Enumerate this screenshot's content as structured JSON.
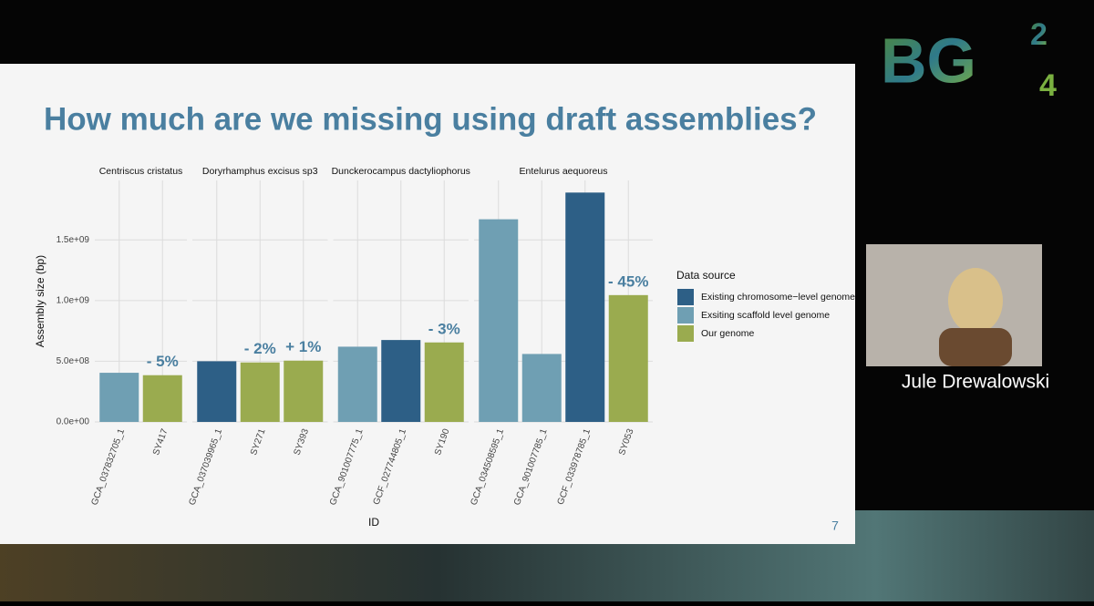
{
  "logo": {
    "text": "BG",
    "superscript": "2",
    "subscript": "4"
  },
  "slide": {
    "title": "How much are we missing using draft assemblies?",
    "page_number": "7"
  },
  "speaker": {
    "name": "Jule Drewalowski"
  },
  "chart_data": {
    "type": "bar",
    "x_label": "ID",
    "y_label": "Assembly size (bp)",
    "ylim": [
      0,
      1990000000
    ],
    "yticks": [
      {
        "value": 0,
        "label": "0.0e+00"
      },
      {
        "value": 500000000,
        "label": "5.0e+08"
      },
      {
        "value": 1000000000,
        "label": "1.0e+09"
      },
      {
        "value": 1500000000,
        "label": "1.5e+09"
      }
    ],
    "grid": true,
    "legend": {
      "title": "Data source",
      "position": "right",
      "entries": [
        {
          "name": "Existing chromosome−level genome",
          "color": "#2d5f86"
        },
        {
          "name": "Exsiting scaffold level genome",
          "color": "#6f9fb3"
        },
        {
          "name": "Our genome",
          "color": "#9aab4f"
        }
      ]
    },
    "facets": [
      {
        "name": "Centriscus cristatus",
        "categories": [
          "GCA_037832705_1",
          "SY417"
        ],
        "values": [
          405000000,
          385000000
        ],
        "colors": [
          "#6f9fb3",
          "#9aab4f"
        ],
        "annotations": [
          null,
          "- 5%"
        ]
      },
      {
        "name": "Doryrhamphus excisus sp3",
        "categories": [
          "GCA_037039965_1",
          "SY271",
          "SY393"
        ],
        "values": [
          500000000,
          490000000,
          505000000
        ],
        "colors": [
          "#2d5f86",
          "#9aab4f",
          "#9aab4f"
        ],
        "annotations": [
          null,
          "- 2%",
          "+ 1%"
        ]
      },
      {
        "name": "Dunckerocampus dactyliophorus",
        "categories": [
          "GCA_901007775_1",
          "GCF_027744805_1",
          "SY190"
        ],
        "values": [
          620000000,
          675000000,
          655000000
        ],
        "colors": [
          "#6f9fb3",
          "#2d5f86",
          "#9aab4f"
        ],
        "annotations": [
          null,
          null,
          "- 3%"
        ]
      },
      {
        "name": "Entelurus aequoreus",
        "categories": [
          "GCA_034508595_1",
          "GCA_901007785_1",
          "GCF_033978785_1",
          "SY053"
        ],
        "values": [
          1670000000,
          560000000,
          1890000000,
          1045000000
        ],
        "colors": [
          "#6f9fb3",
          "#6f9fb3",
          "#2d5f86",
          "#9aab4f"
        ],
        "annotations": [
          null,
          null,
          null,
          "- 45%"
        ]
      }
    ]
  }
}
